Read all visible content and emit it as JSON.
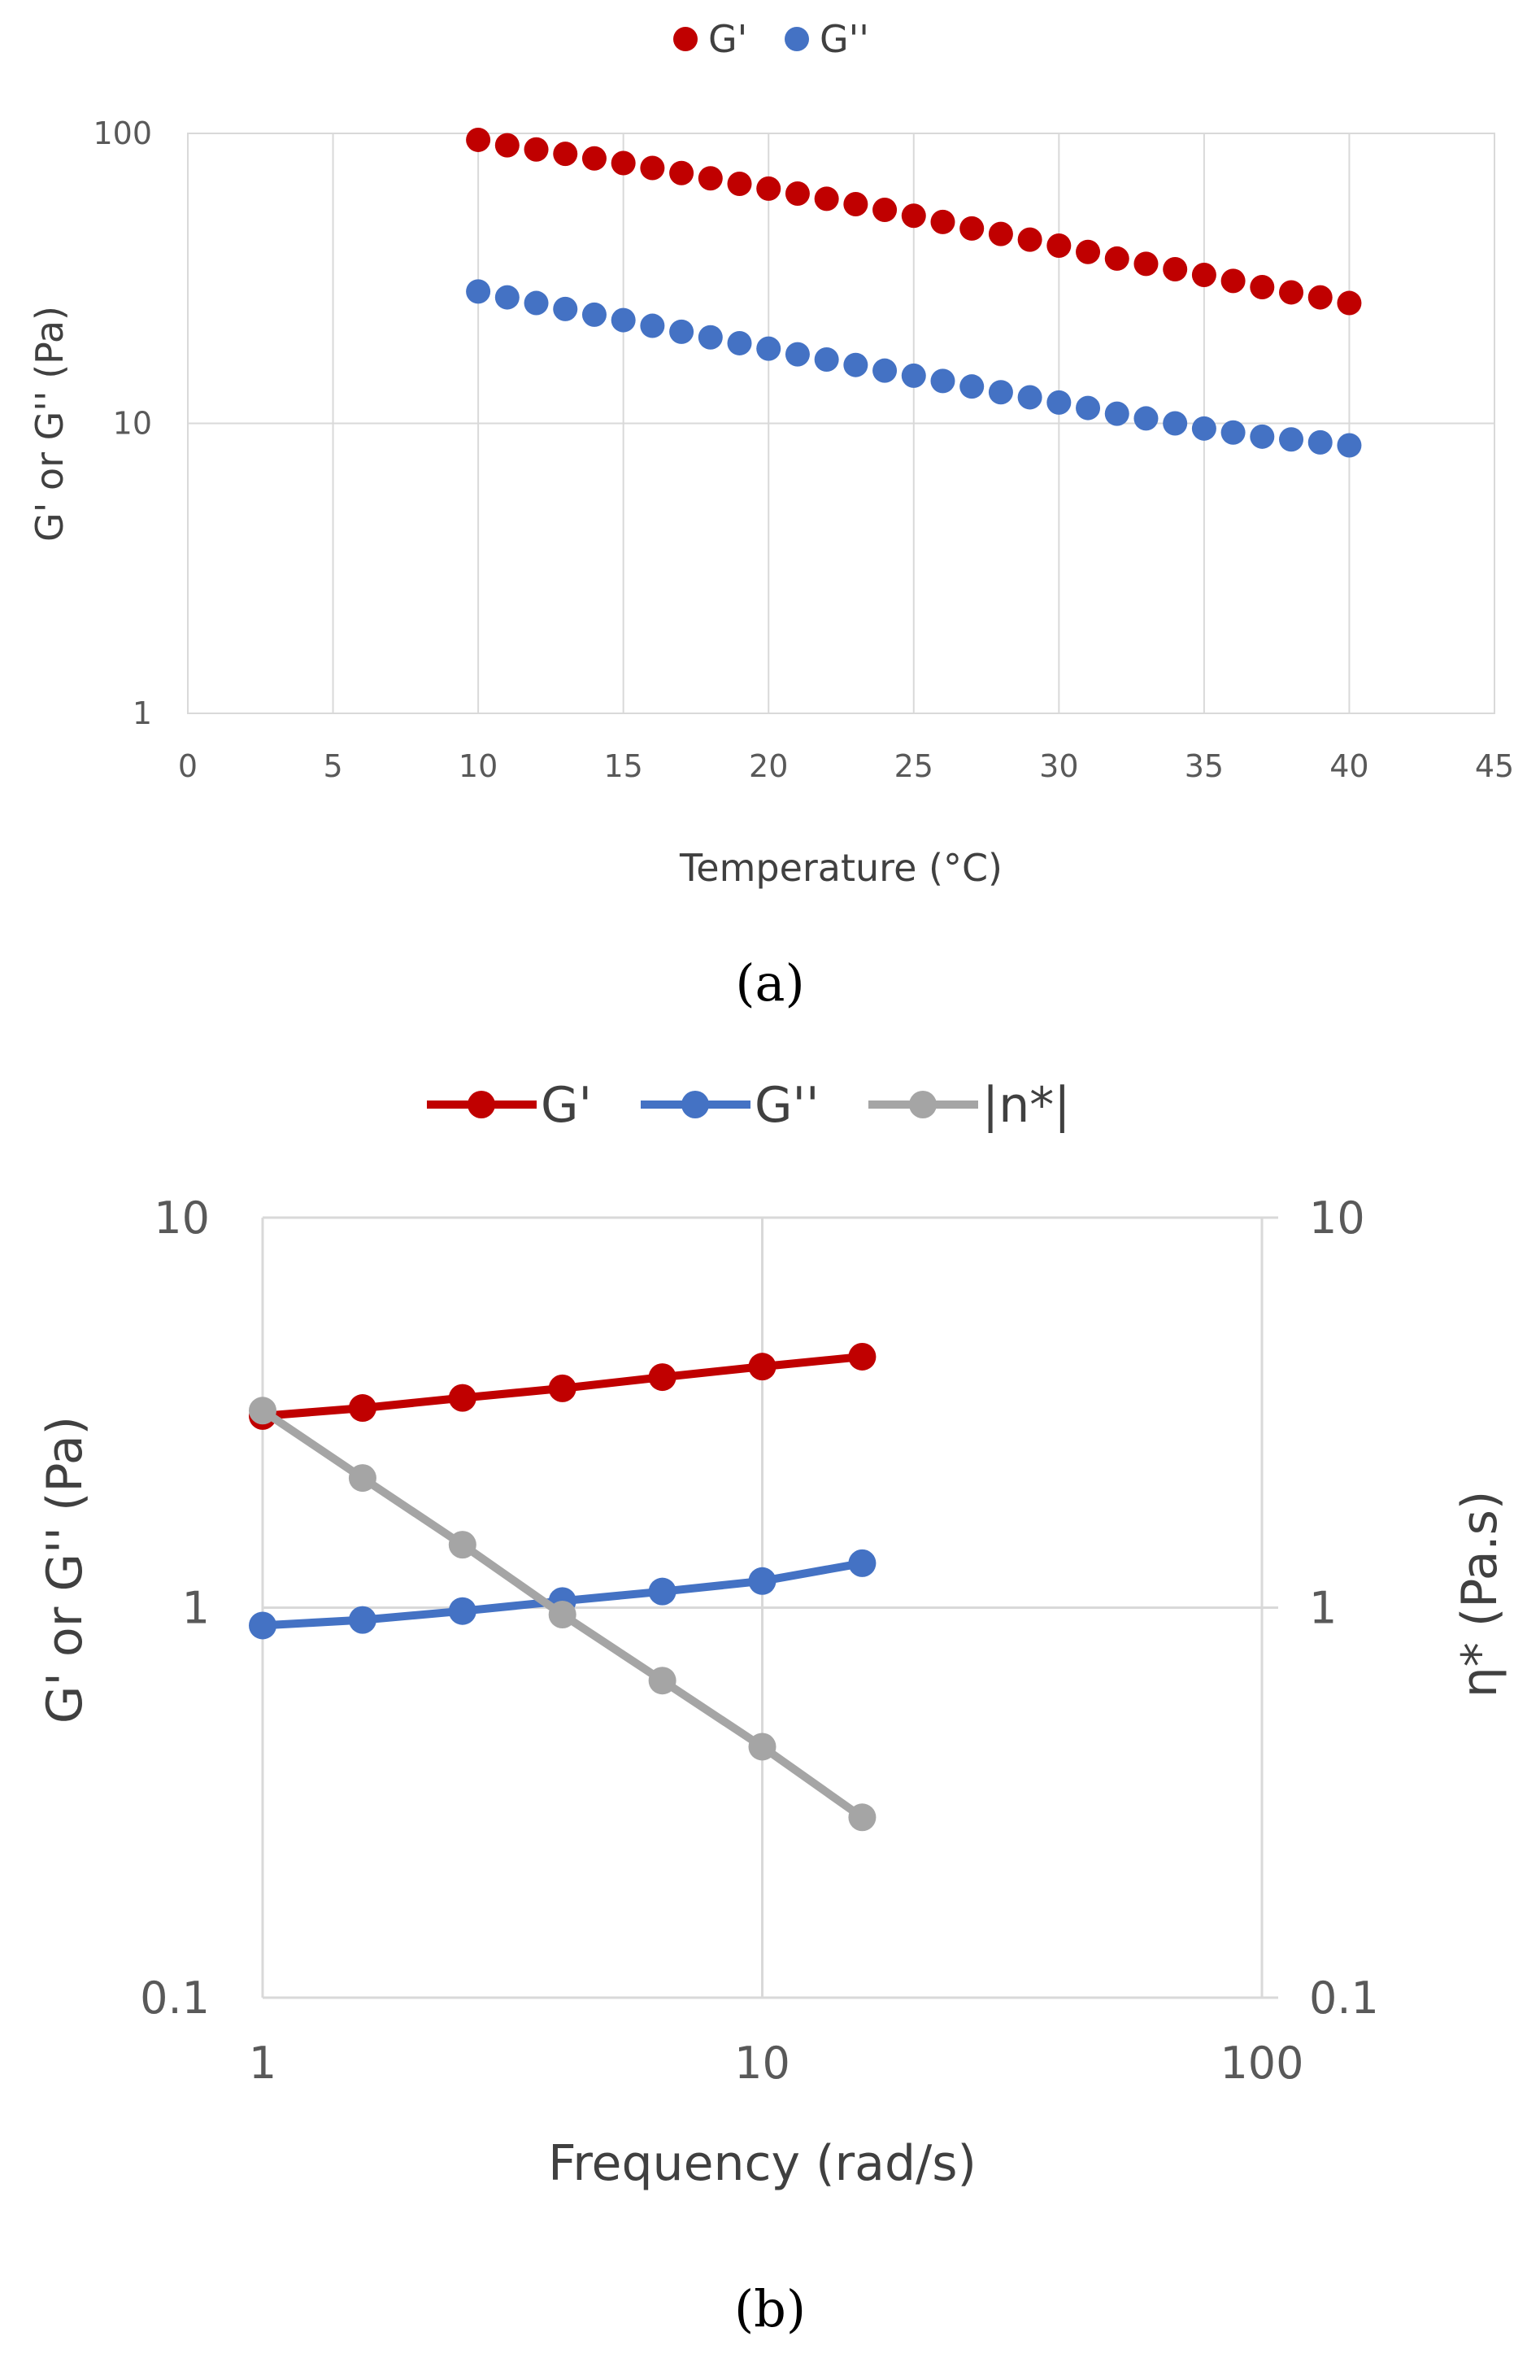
{
  "chart_data": [
    {
      "type": "scatter",
      "panel_label": "(a)",
      "xlabel": "Temperature (°C)",
      "ylabel": "G' or G'' (Pa)",
      "xlim": [
        0,
        45
      ],
      "ylim": [
        1,
        100
      ],
      "yscale": "log",
      "xticks": [
        "0",
        "5",
        "10",
        "15",
        "20",
        "25",
        "30",
        "35",
        "40",
        "45"
      ],
      "yticks": [
        "1",
        "10",
        "100"
      ],
      "grid": true,
      "legend_position": "top",
      "x": [
        10,
        11,
        12,
        13,
        14,
        15,
        16,
        17,
        18,
        19,
        20,
        21,
        22,
        23,
        24,
        25,
        26,
        27,
        28,
        29,
        30,
        31,
        32,
        33,
        34,
        35,
        36,
        37,
        38,
        39,
        40
      ],
      "series": [
        {
          "name": "G'",
          "color": "#c00000",
          "values": [
            95,
            91,
            88,
            85,
            82,
            79,
            76,
            73,
            70,
            67,
            64.5,
            62,
            59.5,
            57,
            54.5,
            52,
            49.5,
            47,
            45,
            43,
            41,
            39,
            37,
            35.5,
            34,
            32.5,
            31,
            29.5,
            28.3,
            27.2,
            26
          ]
        },
        {
          "name": "G''",
          "color": "#4472c4",
          "values": [
            28.5,
            27.2,
            26,
            24.8,
            23.7,
            22.7,
            21.7,
            20.7,
            19.8,
            18.9,
            18.1,
            17.3,
            16.6,
            15.9,
            15.2,
            14.6,
            14,
            13.4,
            12.8,
            12.3,
            11.8,
            11.3,
            10.8,
            10.4,
            10,
            9.6,
            9.3,
            9,
            8.8,
            8.6,
            8.4
          ]
        }
      ]
    },
    {
      "type": "line",
      "panel_label": "(b)",
      "xlabel": "Frequency (rad/s)",
      "ylabel": "G' or G'' (Pa)",
      "y2label": "η* (Pa.s)",
      "xscale": "log",
      "yscale": "log",
      "xlim": [
        1,
        100
      ],
      "ylim": [
        0.1,
        10
      ],
      "y2lim": [
        0.1,
        10
      ],
      "xticks": [
        "1",
        "10",
        "100"
      ],
      "yticks": [
        "0.1",
        "1",
        "10"
      ],
      "y2ticks": [
        "0.1",
        "1",
        "10"
      ],
      "grid": true,
      "legend_position": "top",
      "x": [
        1,
        1.585,
        2.512,
        3.981,
        6.31,
        10,
        15.85
      ],
      "series": [
        {
          "name": "G'",
          "color": "#c00000",
          "axis": "left",
          "values": [
            3.1,
            3.25,
            3.45,
            3.65,
            3.9,
            4.15,
            4.4
          ]
        },
        {
          "name": "G''",
          "color": "#4472c4",
          "axis": "left",
          "values": [
            0.9,
            0.93,
            0.98,
            1.04,
            1.1,
            1.17,
            1.3
          ]
        },
        {
          "name": "|n*|",
          "color": "#a5a5a5",
          "axis": "right",
          "values": [
            3.2,
            2.15,
            1.45,
            0.96,
            0.65,
            0.44,
            0.29
          ]
        }
      ]
    }
  ]
}
